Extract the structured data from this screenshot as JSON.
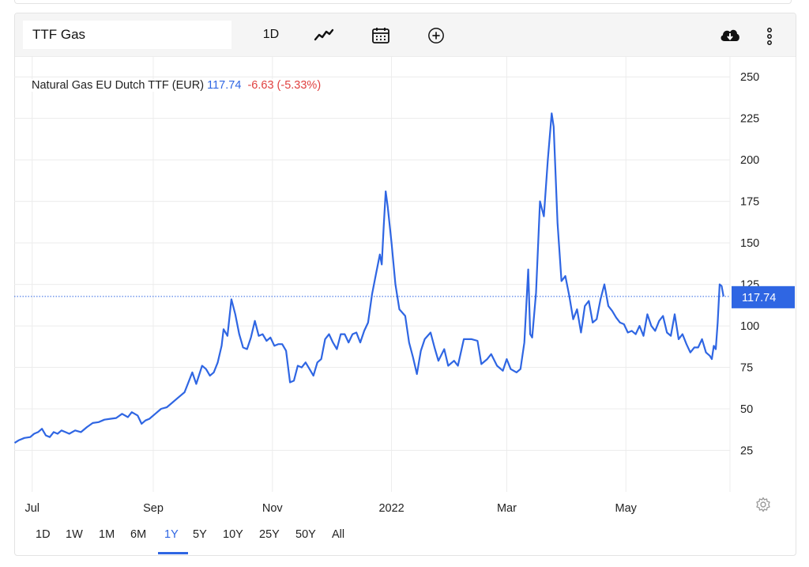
{
  "toolbar": {
    "symbol": "TTF Gas",
    "interval_label": "1D",
    "icons": [
      "line-chart-icon",
      "calendar-icon",
      "add-circle-icon",
      "cloud-download-icon",
      "more-vertical-icon"
    ]
  },
  "legend": {
    "name": "Natural Gas EU Dutch TTF (EUR)",
    "price": "117.74",
    "change": "-6.63 (-5.33%)"
  },
  "ranges": {
    "items": [
      "1D",
      "1W",
      "1M",
      "6M",
      "1Y",
      "5Y",
      "10Y",
      "25Y",
      "50Y",
      "All"
    ],
    "active": "1Y"
  },
  "colors": {
    "line": "#2f66e3",
    "negative": "#e0403f",
    "grid": "#ececec",
    "label_bg": "#2f66e3"
  },
  "chart_data": {
    "type": "line",
    "title": "Natural Gas EU Dutch TTF (EUR)",
    "ylim": [
      0,
      262
    ],
    "y_ticks": [
      25,
      50,
      75,
      100,
      125,
      150,
      175,
      200,
      225,
      250
    ],
    "x_range": [
      "2021-06-22",
      "2022-06-20"
    ],
    "x_ticks": [
      {
        "label": "Jul",
        "date": "2021-07-01"
      },
      {
        "label": "Sep",
        "date": "2021-09-01"
      },
      {
        "label": "Nov",
        "date": "2021-11-01"
      },
      {
        "label": "2022",
        "date": "2022-01-01"
      },
      {
        "label": "Mar",
        "date": "2022-03-01"
      },
      {
        "label": "May",
        "date": "2022-05-01"
      }
    ],
    "last_value": 117.74,
    "last_label": "117.74",
    "grid": true,
    "series": [
      {
        "points": [
          [
            "2021-06-22",
            29.5
          ],
          [
            "2021-06-24",
            31
          ],
          [
            "2021-06-27",
            32.5
          ],
          [
            "2021-06-30",
            33
          ],
          [
            "2021-07-02",
            35
          ],
          [
            "2021-07-04",
            36
          ],
          [
            "2021-07-06",
            38
          ],
          [
            "2021-07-08",
            34
          ],
          [
            "2021-07-10",
            33
          ],
          [
            "2021-07-12",
            36
          ],
          [
            "2021-07-14",
            35
          ],
          [
            "2021-07-16",
            37
          ],
          [
            "2021-07-18",
            36
          ],
          [
            "2021-07-20",
            35
          ],
          [
            "2021-07-23",
            37
          ],
          [
            "2021-07-26",
            36
          ],
          [
            "2021-07-29",
            39
          ],
          [
            "2021-08-01",
            41.5
          ],
          [
            "2021-08-04",
            42
          ],
          [
            "2021-08-07",
            43.5
          ],
          [
            "2021-08-10",
            44
          ],
          [
            "2021-08-13",
            44.5
          ],
          [
            "2021-08-16",
            47
          ],
          [
            "2021-08-19",
            45
          ],
          [
            "2021-08-21",
            48
          ],
          [
            "2021-08-24",
            46
          ],
          [
            "2021-08-26",
            41
          ],
          [
            "2021-08-28",
            43
          ],
          [
            "2021-08-30",
            44
          ],
          [
            "2021-09-02",
            47
          ],
          [
            "2021-09-05",
            50
          ],
          [
            "2021-09-08",
            51
          ],
          [
            "2021-09-11",
            54
          ],
          [
            "2021-09-14",
            57
          ],
          [
            "2021-09-17",
            60
          ],
          [
            "2021-09-19",
            66
          ],
          [
            "2021-09-21",
            72
          ],
          [
            "2021-09-23",
            65
          ],
          [
            "2021-09-26",
            76
          ],
          [
            "2021-09-28",
            74
          ],
          [
            "2021-09-30",
            70
          ],
          [
            "2021-10-02",
            72
          ],
          [
            "2021-10-04",
            78
          ],
          [
            "2021-10-06",
            88
          ],
          [
            "2021-10-07",
            98
          ],
          [
            "2021-10-09",
            94
          ],
          [
            "2021-10-11",
            116
          ],
          [
            "2021-10-13",
            107
          ],
          [
            "2021-10-15",
            95
          ],
          [
            "2021-10-17",
            87
          ],
          [
            "2021-10-19",
            86
          ],
          [
            "2021-10-21",
            93
          ],
          [
            "2021-10-23",
            103
          ],
          [
            "2021-10-25",
            94
          ],
          [
            "2021-10-27",
            95
          ],
          [
            "2021-10-29",
            91
          ],
          [
            "2021-10-31",
            93
          ],
          [
            "2021-11-02",
            88
          ],
          [
            "2021-11-04",
            89
          ],
          [
            "2021-11-06",
            89
          ],
          [
            "2021-11-08",
            85
          ],
          [
            "2021-11-10",
            66
          ],
          [
            "2021-11-12",
            67
          ],
          [
            "2021-11-14",
            76
          ],
          [
            "2021-11-16",
            75
          ],
          [
            "2021-11-18",
            78
          ],
          [
            "2021-11-20",
            74
          ],
          [
            "2021-11-22",
            70
          ],
          [
            "2021-11-24",
            78
          ],
          [
            "2021-11-26",
            80
          ],
          [
            "2021-11-28",
            92
          ],
          [
            "2021-11-30",
            95
          ],
          [
            "2021-12-02",
            90
          ],
          [
            "2021-12-04",
            86
          ],
          [
            "2021-12-06",
            95
          ],
          [
            "2021-12-08",
            95
          ],
          [
            "2021-12-10",
            90
          ],
          [
            "2021-12-12",
            95
          ],
          [
            "2021-12-14",
            96
          ],
          [
            "2021-12-16",
            90
          ],
          [
            "2021-12-18",
            97
          ],
          [
            "2021-12-20",
            102
          ],
          [
            "2021-12-22",
            119
          ],
          [
            "2021-12-24",
            131
          ],
          [
            "2021-12-26",
            143
          ],
          [
            "2021-12-27",
            137
          ],
          [
            "2021-12-28",
            160
          ],
          [
            "2021-12-29",
            181
          ],
          [
            "2021-12-30",
            172
          ],
          [
            "2022-01-01",
            150
          ],
          [
            "2022-01-03",
            125
          ],
          [
            "2022-01-05",
            110
          ],
          [
            "2022-01-08",
            106
          ],
          [
            "2022-01-10",
            90
          ],
          [
            "2022-01-12",
            81
          ],
          [
            "2022-01-14",
            71
          ],
          [
            "2022-01-16",
            85
          ],
          [
            "2022-01-18",
            92
          ],
          [
            "2022-01-21",
            96
          ],
          [
            "2022-01-23",
            87
          ],
          [
            "2022-01-25",
            79
          ],
          [
            "2022-01-28",
            86
          ],
          [
            "2022-01-30",
            76
          ],
          [
            "2022-02-02",
            79
          ],
          [
            "2022-02-04",
            76
          ],
          [
            "2022-02-07",
            92
          ],
          [
            "2022-02-09",
            92
          ],
          [
            "2022-02-11",
            92
          ],
          [
            "2022-02-14",
            91
          ],
          [
            "2022-02-16",
            77
          ],
          [
            "2022-02-19",
            80
          ],
          [
            "2022-02-21",
            83
          ],
          [
            "2022-02-24",
            76
          ],
          [
            "2022-02-27",
            73
          ],
          [
            "2022-03-01",
            80
          ],
          [
            "2022-03-03",
            74
          ],
          [
            "2022-03-06",
            72
          ],
          [
            "2022-03-08",
            74
          ],
          [
            "2022-03-10",
            90
          ],
          [
            "2022-03-12",
            134
          ],
          [
            "2022-03-13",
            95
          ],
          [
            "2022-03-14",
            93
          ],
          [
            "2022-03-16",
            120
          ],
          [
            "2022-03-18",
            175
          ],
          [
            "2022-03-20",
            166
          ],
          [
            "2022-03-22",
            200
          ],
          [
            "2022-03-24",
            228
          ],
          [
            "2022-03-25",
            220
          ],
          [
            "2022-03-27",
            162
          ],
          [
            "2022-03-29",
            127
          ],
          [
            "2022-03-31",
            130
          ],
          [
            "2022-04-02",
            118
          ],
          [
            "2022-04-04",
            104
          ],
          [
            "2022-04-06",
            110
          ],
          [
            "2022-04-08",
            96
          ],
          [
            "2022-04-10",
            112
          ],
          [
            "2022-04-12",
            115
          ],
          [
            "2022-04-14",
            102
          ],
          [
            "2022-04-16",
            104
          ],
          [
            "2022-04-18",
            116
          ],
          [
            "2022-04-20",
            125
          ],
          [
            "2022-04-22",
            112
          ],
          [
            "2022-04-24",
            109
          ],
          [
            "2022-04-26",
            105
          ],
          [
            "2022-04-28",
            102
          ],
          [
            "2022-04-30",
            101
          ],
          [
            "2022-05-02",
            96
          ],
          [
            "2022-05-04",
            97
          ],
          [
            "2022-05-06",
            95
          ],
          [
            "2022-05-08",
            100
          ],
          [
            "2022-05-10",
            94
          ],
          [
            "2022-05-12",
            107
          ],
          [
            "2022-05-14",
            100
          ],
          [
            "2022-05-16",
            97
          ],
          [
            "2022-05-18",
            103
          ],
          [
            "2022-05-20",
            106
          ],
          [
            "2022-05-22",
            96
          ],
          [
            "2022-05-24",
            94
          ],
          [
            "2022-05-26",
            107
          ],
          [
            "2022-05-28",
            92
          ],
          [
            "2022-05-30",
            95
          ],
          [
            "2022-06-01",
            89
          ],
          [
            "2022-06-03",
            84
          ],
          [
            "2022-06-05",
            87
          ],
          [
            "2022-06-07",
            87
          ],
          [
            "2022-06-09",
            92
          ],
          [
            "2022-06-11",
            84
          ],
          [
            "2022-06-13",
            82
          ],
          [
            "2022-06-14",
            80
          ],
          [
            "2022-06-15",
            88
          ],
          [
            "2022-06-16",
            86
          ],
          [
            "2022-06-17",
            102
          ],
          [
            "2022-06-18",
            125
          ],
          [
            "2022-06-19",
            124
          ],
          [
            "2022-06-20",
            117.74
          ]
        ]
      }
    ]
  }
}
